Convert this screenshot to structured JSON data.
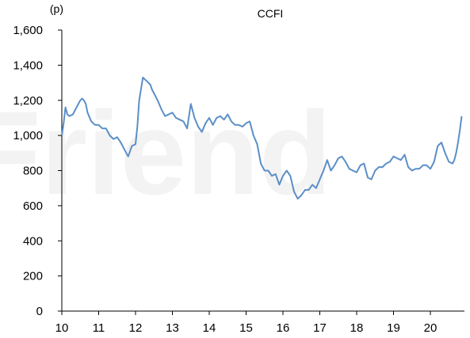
{
  "chart_data": {
    "type": "line",
    "title": "CCFI",
    "unit": "(p)",
    "watermark": "Friend",
    "xlabel": "",
    "ylabel": "",
    "xlim": [
      10,
      20.85
    ],
    "ylim": [
      0,
      1600
    ],
    "x_ticks": [
      10,
      11,
      12,
      13,
      14,
      15,
      16,
      17,
      18,
      19,
      20
    ],
    "x_tick_labels": [
      "10",
      "11",
      "12",
      "13",
      "14",
      "15",
      "16",
      "17",
      "18",
      "19",
      "20"
    ],
    "y_ticks": [
      0,
      200,
      400,
      600,
      800,
      1000,
      1200,
      1400,
      1600
    ],
    "y_tick_labels": [
      "0",
      "200",
      "400",
      "600",
      "800",
      "1,000",
      "1,200",
      "1,400",
      "1,600"
    ],
    "grid": false,
    "legend": "none",
    "series_color": "#5b8fc7",
    "series": [
      {
        "x": [
          10.0,
          10.05,
          10.1,
          10.15,
          10.2,
          10.3,
          10.4,
          10.5,
          10.55,
          10.6,
          10.65,
          10.7,
          10.8,
          10.9,
          11.0,
          11.1,
          11.2,
          11.3,
          11.4,
          11.5,
          11.6,
          11.7,
          11.8,
          11.9,
          12.0,
          12.05,
          12.1,
          12.2,
          12.25,
          12.3,
          12.35,
          12.4,
          12.45,
          12.5,
          12.6,
          12.7,
          12.8,
          12.9,
          13.0,
          13.1,
          13.2,
          13.3,
          13.4,
          13.5,
          13.6,
          13.7,
          13.8,
          13.9,
          14.0,
          14.1,
          14.2,
          14.3,
          14.4,
          14.5,
          14.6,
          14.7,
          14.8,
          14.9,
          15.0,
          15.1,
          15.2,
          15.3,
          15.4,
          15.5,
          15.6,
          15.7,
          15.8,
          15.9,
          16.0,
          16.1,
          16.2,
          16.3,
          16.4,
          16.5,
          16.6,
          16.7,
          16.8,
          16.9,
          17.0,
          17.1,
          17.2,
          17.3,
          17.4,
          17.5,
          17.6,
          17.7,
          17.8,
          17.9,
          18.0,
          18.1,
          18.2,
          18.3,
          18.4,
          18.5,
          18.6,
          18.7,
          18.8,
          18.9,
          19.0,
          19.1,
          19.2,
          19.3,
          19.4,
          19.5,
          19.6,
          19.7,
          19.8,
          19.9,
          20.0,
          20.1,
          20.2,
          20.3,
          20.4,
          20.5,
          20.6,
          20.65,
          20.7,
          20.75,
          20.8,
          20.85
        ],
        "values": [
          1000,
          1070,
          1160,
          1120,
          1110,
          1120,
          1160,
          1200,
          1210,
          1200,
          1180,
          1130,
          1080,
          1060,
          1060,
          1040,
          1040,
          1000,
          980,
          990,
          960,
          920,
          880,
          940,
          950,
          1050,
          1200,
          1330,
          1320,
          1310,
          1300,
          1290,
          1260,
          1240,
          1200,
          1150,
          1110,
          1120,
          1130,
          1100,
          1090,
          1080,
          1040,
          1180,
          1100,
          1050,
          1020,
          1070,
          1100,
          1060,
          1100,
          1110,
          1090,
          1120,
          1080,
          1060,
          1060,
          1050,
          1070,
          1080,
          1000,
          950,
          840,
          800,
          800,
          770,
          780,
          720,
          770,
          800,
          770,
          680,
          640,
          660,
          690,
          690,
          720,
          700,
          750,
          800,
          860,
          800,
          830,
          870,
          880,
          850,
          810,
          800,
          790,
          830,
          840,
          760,
          750,
          800,
          820,
          820,
          840,
          850,
          880,
          870,
          860,
          890,
          820,
          800,
          810,
          810,
          830,
          830,
          810,
          850,
          940,
          960,
          900,
          850,
          840,
          860,
          900,
          960,
          1030,
          1110
        ]
      }
    ]
  }
}
